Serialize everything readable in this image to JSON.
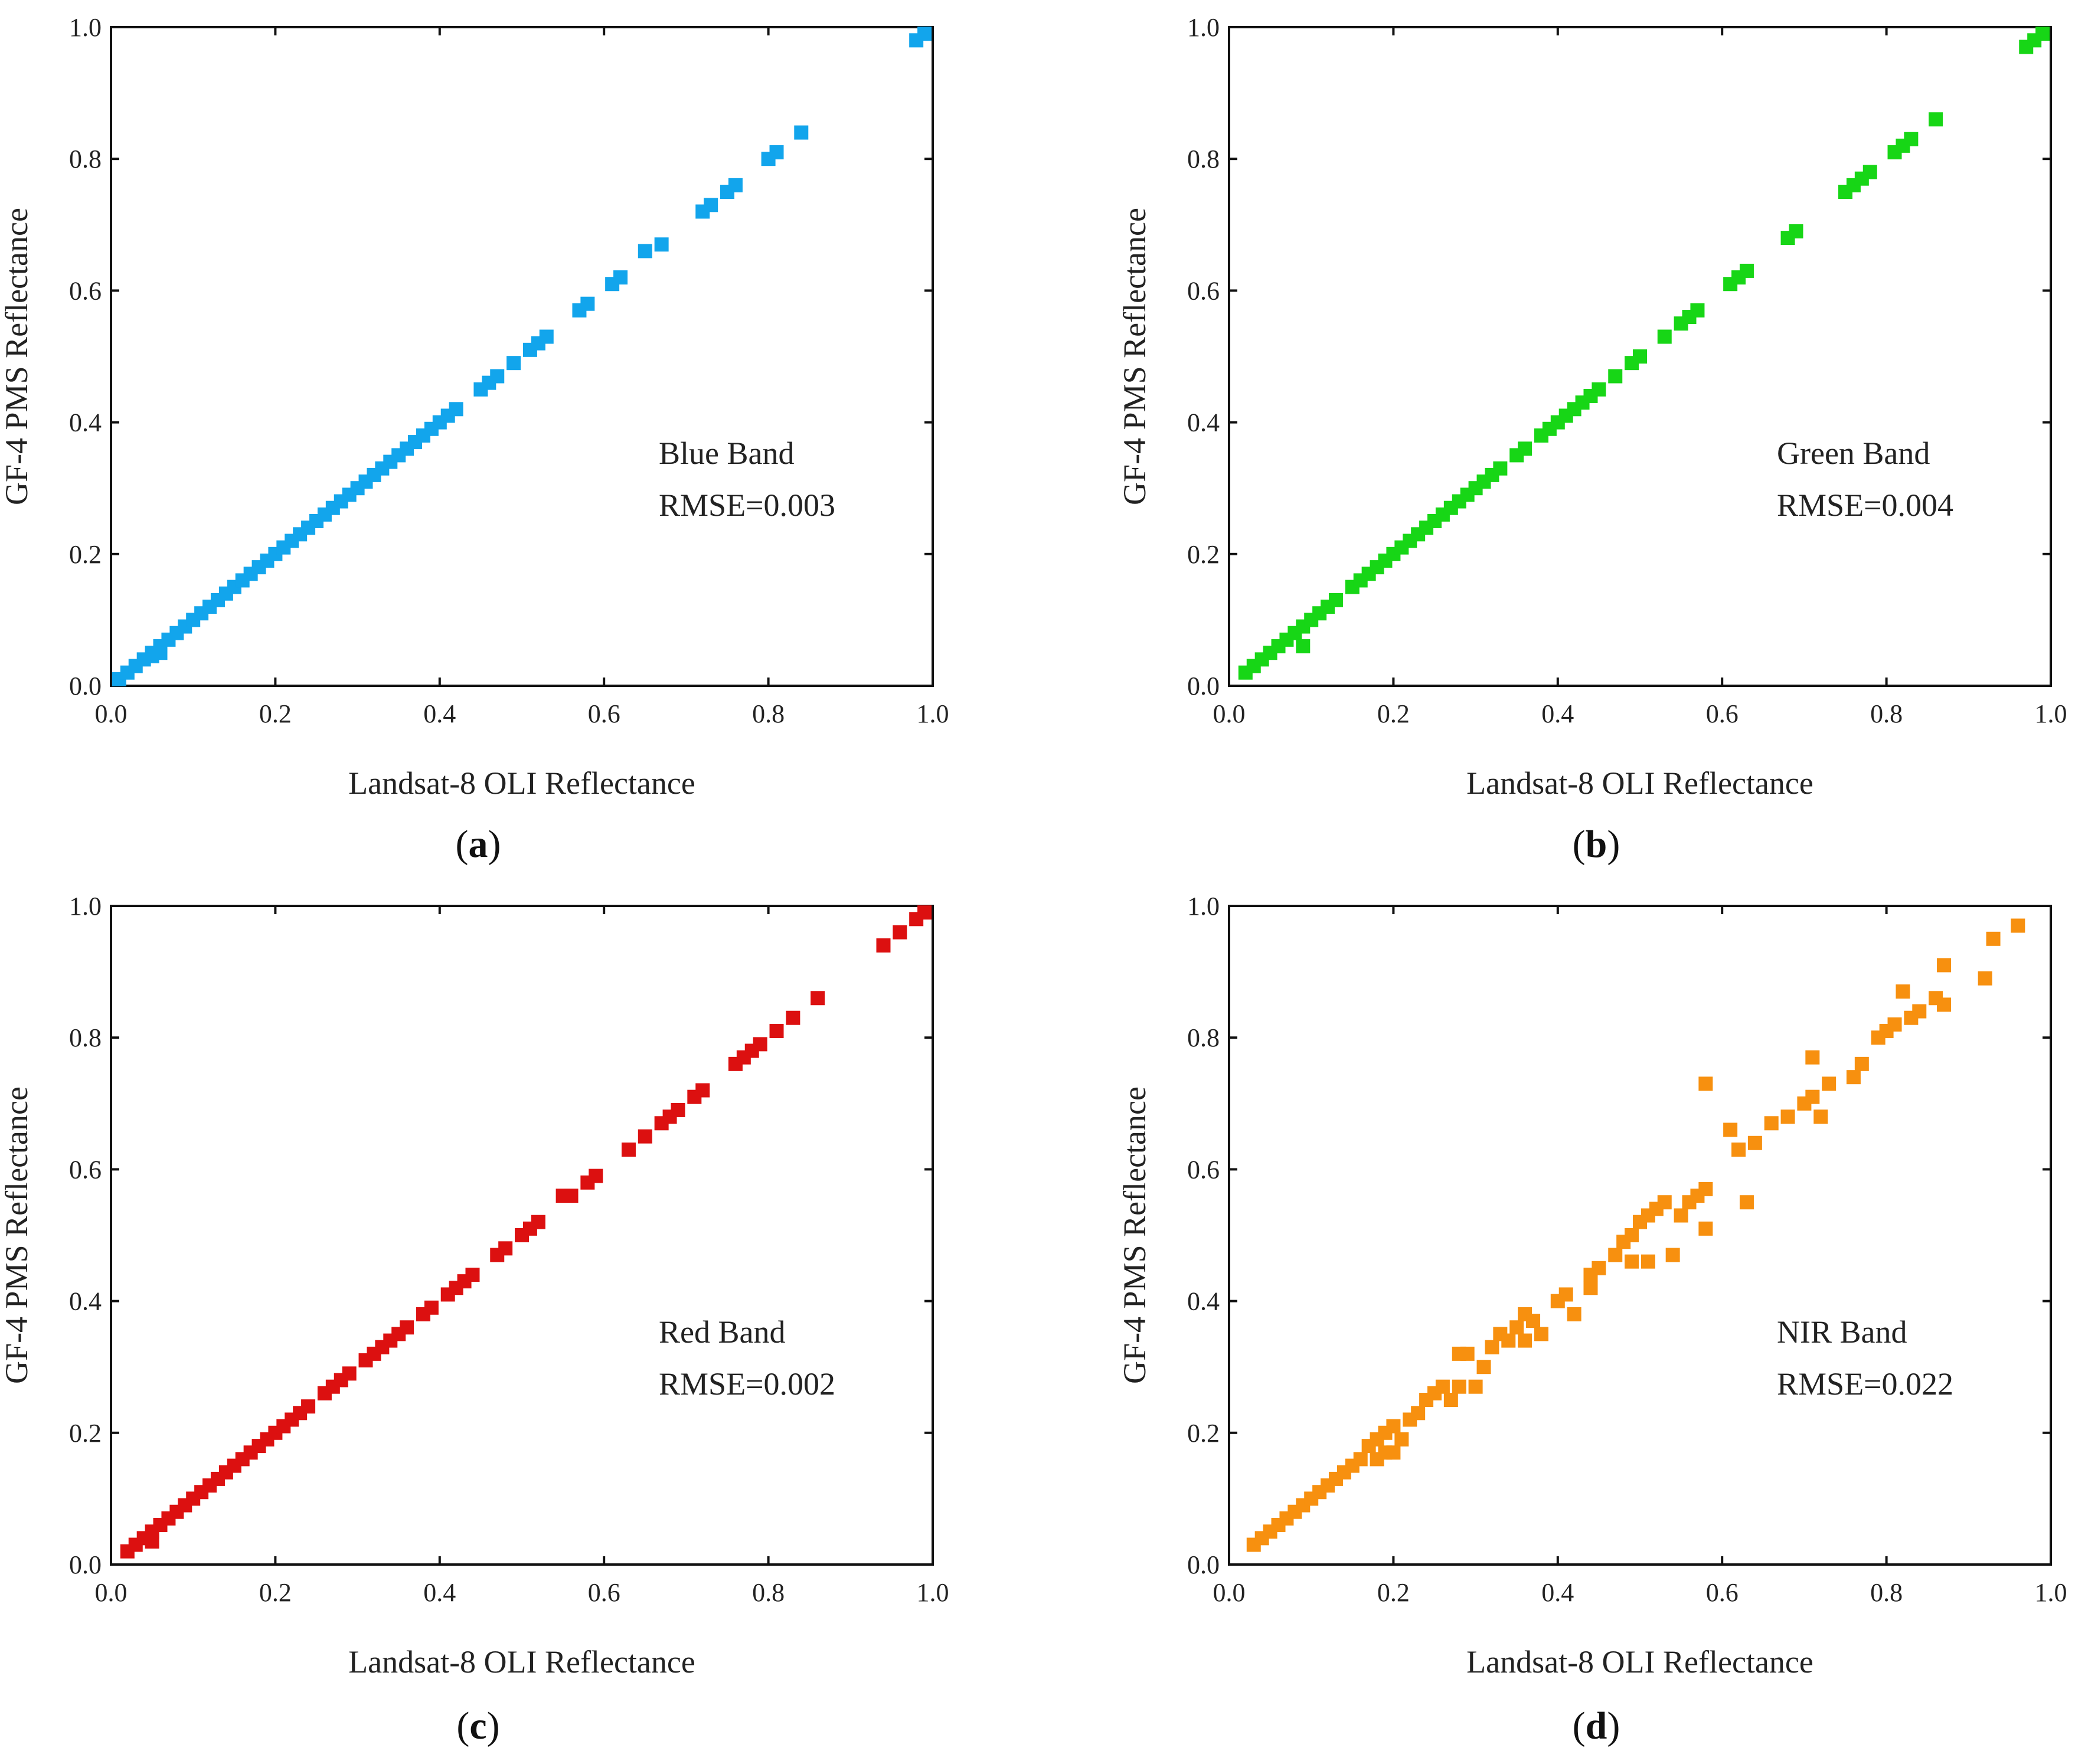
{
  "chart_data": [
    {
      "type": "scatter",
      "panel": "a",
      "band": "Blue Band",
      "rmse_label": "RMSE=0.003",
      "xlabel": "Landsat-8 OLI Reflectance",
      "ylabel": "GF-4 PMS Reflectance",
      "xlim": [
        0,
        1
      ],
      "ylim": [
        0,
        1
      ],
      "xticks": [
        "0.0",
        "0.2",
        "0.4",
        "0.6",
        "0.8",
        "1.0"
      ],
      "yticks": [
        "0.0",
        "0.2",
        "0.4",
        "0.6",
        "0.8",
        "1.0"
      ],
      "color": "#12a5ec",
      "points": [
        [
          0.01,
          0.01
        ],
        [
          0.02,
          0.02
        ],
        [
          0.03,
          0.03
        ],
        [
          0.04,
          0.04
        ],
        [
          0.05,
          0.05
        ],
        [
          0.06,
          0.06
        ],
        [
          0.05,
          0.045
        ],
        [
          0.06,
          0.05
        ],
        [
          0.07,
          0.07
        ],
        [
          0.08,
          0.08
        ],
        [
          0.09,
          0.09
        ],
        [
          0.1,
          0.1
        ],
        [
          0.11,
          0.11
        ],
        [
          0.12,
          0.12
        ],
        [
          0.13,
          0.13
        ],
        [
          0.14,
          0.14
        ],
        [
          0.15,
          0.15
        ],
        [
          0.16,
          0.16
        ],
        [
          0.17,
          0.17
        ],
        [
          0.18,
          0.18
        ],
        [
          0.19,
          0.19
        ],
        [
          0.2,
          0.2
        ],
        [
          0.21,
          0.21
        ],
        [
          0.22,
          0.22
        ],
        [
          0.23,
          0.23
        ],
        [
          0.24,
          0.24
        ],
        [
          0.25,
          0.25
        ],
        [
          0.26,
          0.26
        ],
        [
          0.27,
          0.27
        ],
        [
          0.28,
          0.28
        ],
        [
          0.29,
          0.29
        ],
        [
          0.3,
          0.3
        ],
        [
          0.31,
          0.31
        ],
        [
          0.32,
          0.32
        ],
        [
          0.33,
          0.33
        ],
        [
          0.34,
          0.34
        ],
        [
          0.35,
          0.35
        ],
        [
          0.36,
          0.36
        ],
        [
          0.37,
          0.37
        ],
        [
          0.38,
          0.38
        ],
        [
          0.39,
          0.39
        ],
        [
          0.4,
          0.4
        ],
        [
          0.41,
          0.41
        ],
        [
          0.42,
          0.42
        ],
        [
          0.45,
          0.45
        ],
        [
          0.46,
          0.46
        ],
        [
          0.47,
          0.47
        ],
        [
          0.49,
          0.49
        ],
        [
          0.51,
          0.51
        ],
        [
          0.52,
          0.52
        ],
        [
          0.53,
          0.53
        ],
        [
          0.57,
          0.57
        ],
        [
          0.58,
          0.58
        ],
        [
          0.61,
          0.61
        ],
        [
          0.62,
          0.62
        ],
        [
          0.65,
          0.66
        ],
        [
          0.67,
          0.67
        ],
        [
          0.72,
          0.72
        ],
        [
          0.73,
          0.73
        ],
        [
          0.75,
          0.75
        ],
        [
          0.76,
          0.76
        ],
        [
          0.8,
          0.8
        ],
        [
          0.81,
          0.81
        ],
        [
          0.84,
          0.84
        ],
        [
          0.98,
          0.98
        ],
        [
          0.99,
          0.99
        ]
      ]
    },
    {
      "type": "scatter",
      "panel": "b",
      "band": "Green Band",
      "rmse_label": "RMSE=0.004",
      "xlabel": "Landsat-8 OLI Reflectance",
      "ylabel": "GF-4 PMS Reflectance",
      "xlim": [
        0,
        1
      ],
      "ylim": [
        0,
        1
      ],
      "xticks": [
        "0.0",
        "0.2",
        "0.4",
        "0.6",
        "0.8",
        "1.0"
      ],
      "yticks": [
        "0.0",
        "0.2",
        "0.4",
        "0.6",
        "0.8",
        "1.0"
      ],
      "color": "#17d616",
      "points": [
        [
          0.02,
          0.02
        ],
        [
          0.03,
          0.03
        ],
        [
          0.04,
          0.04
        ],
        [
          0.05,
          0.05
        ],
        [
          0.06,
          0.06
        ],
        [
          0.07,
          0.07
        ],
        [
          0.08,
          0.08
        ],
        [
          0.09,
          0.09
        ],
        [
          0.09,
          0.06
        ],
        [
          0.1,
          0.1
        ],
        [
          0.11,
          0.11
        ],
        [
          0.12,
          0.12
        ],
        [
          0.13,
          0.13
        ],
        [
          0.15,
          0.15
        ],
        [
          0.16,
          0.16
        ],
        [
          0.17,
          0.17
        ],
        [
          0.18,
          0.18
        ],
        [
          0.19,
          0.19
        ],
        [
          0.2,
          0.2
        ],
        [
          0.21,
          0.21
        ],
        [
          0.22,
          0.22
        ],
        [
          0.23,
          0.23
        ],
        [
          0.24,
          0.24
        ],
        [
          0.25,
          0.25
        ],
        [
          0.26,
          0.26
        ],
        [
          0.27,
          0.27
        ],
        [
          0.28,
          0.28
        ],
        [
          0.29,
          0.29
        ],
        [
          0.3,
          0.3
        ],
        [
          0.31,
          0.31
        ],
        [
          0.32,
          0.32
        ],
        [
          0.33,
          0.33
        ],
        [
          0.35,
          0.35
        ],
        [
          0.36,
          0.36
        ],
        [
          0.38,
          0.38
        ],
        [
          0.39,
          0.39
        ],
        [
          0.4,
          0.4
        ],
        [
          0.41,
          0.41
        ],
        [
          0.42,
          0.42
        ],
        [
          0.43,
          0.43
        ],
        [
          0.44,
          0.44
        ],
        [
          0.45,
          0.45
        ],
        [
          0.47,
          0.47
        ],
        [
          0.49,
          0.49
        ],
        [
          0.5,
          0.5
        ],
        [
          0.53,
          0.53
        ],
        [
          0.55,
          0.55
        ],
        [
          0.56,
          0.56
        ],
        [
          0.57,
          0.57
        ],
        [
          0.61,
          0.61
        ],
        [
          0.62,
          0.62
        ],
        [
          0.63,
          0.63
        ],
        [
          0.68,
          0.68
        ],
        [
          0.69,
          0.69
        ],
        [
          0.75,
          0.75
        ],
        [
          0.76,
          0.76
        ],
        [
          0.77,
          0.77
        ],
        [
          0.78,
          0.78
        ],
        [
          0.81,
          0.81
        ],
        [
          0.82,
          0.82
        ],
        [
          0.83,
          0.83
        ],
        [
          0.86,
          0.86
        ],
        [
          0.97,
          0.97
        ],
        [
          0.98,
          0.98
        ],
        [
          0.99,
          0.99
        ]
      ]
    },
    {
      "type": "scatter",
      "panel": "c",
      "band": "Red Band",
      "rmse_label": "RMSE=0.002",
      "xlabel": "Landsat-8 OLI Reflectance",
      "ylabel": "GF-4 PMS Reflectance",
      "xlim": [
        0,
        1
      ],
      "ylim": [
        0,
        1
      ],
      "xticks": [
        "0.0",
        "0.2",
        "0.4",
        "0.6",
        "0.8",
        "1.0"
      ],
      "yticks": [
        "0.0",
        "0.2",
        "0.4",
        "0.6",
        "0.8",
        "1.0"
      ],
      "color": "#dc1010",
      "points": [
        [
          0.02,
          0.02
        ],
        [
          0.03,
          0.03
        ],
        [
          0.04,
          0.04
        ],
        [
          0.05,
          0.05
        ],
        [
          0.05,
          0.035
        ],
        [
          0.06,
          0.06
        ],
        [
          0.07,
          0.07
        ],
        [
          0.08,
          0.08
        ],
        [
          0.09,
          0.09
        ],
        [
          0.1,
          0.1
        ],
        [
          0.11,
          0.11
        ],
        [
          0.12,
          0.12
        ],
        [
          0.13,
          0.13
        ],
        [
          0.14,
          0.14
        ],
        [
          0.15,
          0.15
        ],
        [
          0.16,
          0.16
        ],
        [
          0.17,
          0.17
        ],
        [
          0.18,
          0.18
        ],
        [
          0.19,
          0.19
        ],
        [
          0.2,
          0.2
        ],
        [
          0.21,
          0.21
        ],
        [
          0.22,
          0.22
        ],
        [
          0.23,
          0.23
        ],
        [
          0.24,
          0.24
        ],
        [
          0.26,
          0.26
        ],
        [
          0.27,
          0.27
        ],
        [
          0.28,
          0.28
        ],
        [
          0.29,
          0.29
        ],
        [
          0.31,
          0.31
        ],
        [
          0.32,
          0.32
        ],
        [
          0.33,
          0.33
        ],
        [
          0.34,
          0.34
        ],
        [
          0.35,
          0.35
        ],
        [
          0.36,
          0.36
        ],
        [
          0.38,
          0.38
        ],
        [
          0.39,
          0.39
        ],
        [
          0.41,
          0.41
        ],
        [
          0.42,
          0.42
        ],
        [
          0.43,
          0.43
        ],
        [
          0.44,
          0.44
        ],
        [
          0.47,
          0.47
        ],
        [
          0.48,
          0.48
        ],
        [
          0.5,
          0.5
        ],
        [
          0.51,
          0.51
        ],
        [
          0.52,
          0.52
        ],
        [
          0.55,
          0.56
        ],
        [
          0.56,
          0.56
        ],
        [
          0.58,
          0.58
        ],
        [
          0.59,
          0.59
        ],
        [
          0.63,
          0.63
        ],
        [
          0.65,
          0.65
        ],
        [
          0.67,
          0.67
        ],
        [
          0.68,
          0.68
        ],
        [
          0.69,
          0.69
        ],
        [
          0.71,
          0.71
        ],
        [
          0.72,
          0.72
        ],
        [
          0.76,
          0.76
        ],
        [
          0.77,
          0.77
        ],
        [
          0.78,
          0.78
        ],
        [
          0.79,
          0.79
        ],
        [
          0.81,
          0.81
        ],
        [
          0.83,
          0.83
        ],
        [
          0.86,
          0.86
        ],
        [
          0.94,
          0.94
        ],
        [
          0.96,
          0.96
        ],
        [
          0.98,
          0.98
        ],
        [
          0.99,
          0.99
        ]
      ]
    },
    {
      "type": "scatter",
      "panel": "d",
      "band": "NIR Band",
      "rmse_label": "RMSE=0.022",
      "xlabel": "Landsat-8 OLI Reflectance",
      "ylabel": "GF-4 PMS Reflectance",
      "xlim": [
        0,
        1
      ],
      "ylim": [
        0,
        1
      ],
      "xticks": [
        "0.0",
        "0.2",
        "0.4",
        "0.6",
        "0.8",
        "1.0"
      ],
      "yticks": [
        "0.0",
        "0.2",
        "0.4",
        "0.6",
        "0.8",
        "1.0"
      ],
      "color": "#f7900f",
      "points": [
        [
          0.03,
          0.03
        ],
        [
          0.04,
          0.04
        ],
        [
          0.05,
          0.05
        ],
        [
          0.06,
          0.06
        ],
        [
          0.07,
          0.07
        ],
        [
          0.08,
          0.08
        ],
        [
          0.09,
          0.09
        ],
        [
          0.1,
          0.1
        ],
        [
          0.11,
          0.11
        ],
        [
          0.12,
          0.12
        ],
        [
          0.13,
          0.13
        ],
        [
          0.14,
          0.14
        ],
        [
          0.15,
          0.15
        ],
        [
          0.16,
          0.16
        ],
        [
          0.17,
          0.18
        ],
        [
          0.18,
          0.19
        ],
        [
          0.19,
          0.2
        ],
        [
          0.2,
          0.21
        ],
        [
          0.18,
          0.16
        ],
        [
          0.19,
          0.17
        ],
        [
          0.2,
          0.17
        ],
        [
          0.21,
          0.19
        ],
        [
          0.22,
          0.22
        ],
        [
          0.23,
          0.23
        ],
        [
          0.24,
          0.25
        ],
        [
          0.25,
          0.26
        ],
        [
          0.26,
          0.27
        ],
        [
          0.27,
          0.25
        ],
        [
          0.28,
          0.32
        ],
        [
          0.29,
          0.32
        ],
        [
          0.28,
          0.27
        ],
        [
          0.3,
          0.27
        ],
        [
          0.31,
          0.3
        ],
        [
          0.32,
          0.33
        ],
        [
          0.33,
          0.35
        ],
        [
          0.34,
          0.34
        ],
        [
          0.35,
          0.36
        ],
        [
          0.36,
          0.38
        ],
        [
          0.37,
          0.37
        ],
        [
          0.36,
          0.34
        ],
        [
          0.38,
          0.35
        ],
        [
          0.4,
          0.4
        ],
        [
          0.41,
          0.41
        ],
        [
          0.42,
          0.38
        ],
        [
          0.44,
          0.44
        ],
        [
          0.45,
          0.45
        ],
        [
          0.44,
          0.42
        ],
        [
          0.47,
          0.47
        ],
        [
          0.48,
          0.49
        ],
        [
          0.49,
          0.5
        ],
        [
          0.5,
          0.52
        ],
        [
          0.51,
          0.53
        ],
        [
          0.52,
          0.54
        ],
        [
          0.53,
          0.55
        ],
        [
          0.55,
          0.53
        ],
        [
          0.56,
          0.55
        ],
        [
          0.57,
          0.56
        ],
        [
          0.58,
          0.57
        ],
        [
          0.49,
          0.46
        ],
        [
          0.51,
          0.46
        ],
        [
          0.54,
          0.47
        ],
        [
          0.58,
          0.51
        ],
        [
          0.58,
          0.73
        ],
        [
          0.61,
          0.66
        ],
        [
          0.62,
          0.63
        ],
        [
          0.63,
          0.55
        ],
        [
          0.64,
          0.64
        ],
        [
          0.66,
          0.67
        ],
        [
          0.68,
          0.68
        ],
        [
          0.7,
          0.7
        ],
        [
          0.71,
          0.71
        ],
        [
          0.71,
          0.77
        ],
        [
          0.72,
          0.68
        ],
        [
          0.73,
          0.73
        ],
        [
          0.76,
          0.74
        ],
        [
          0.77,
          0.76
        ],
        [
          0.79,
          0.8
        ],
        [
          0.8,
          0.81
        ],
        [
          0.81,
          0.82
        ],
        [
          0.82,
          0.87
        ],
        [
          0.83,
          0.83
        ],
        [
          0.84,
          0.84
        ],
        [
          0.86,
          0.86
        ],
        [
          0.87,
          0.85
        ],
        [
          0.87,
          0.91
        ],
        [
          0.92,
          0.89
        ],
        [
          0.93,
          0.95
        ],
        [
          0.96,
          0.97
        ]
      ]
    }
  ],
  "captions": [
    {
      "open": "(",
      "letter": "a",
      "close": ")"
    },
    {
      "open": "(",
      "letter": "b",
      "close": ")"
    },
    {
      "open": "(",
      "letter": "c",
      "close": ")"
    },
    {
      "open": "(",
      "letter": "d",
      "close": ")"
    }
  ]
}
